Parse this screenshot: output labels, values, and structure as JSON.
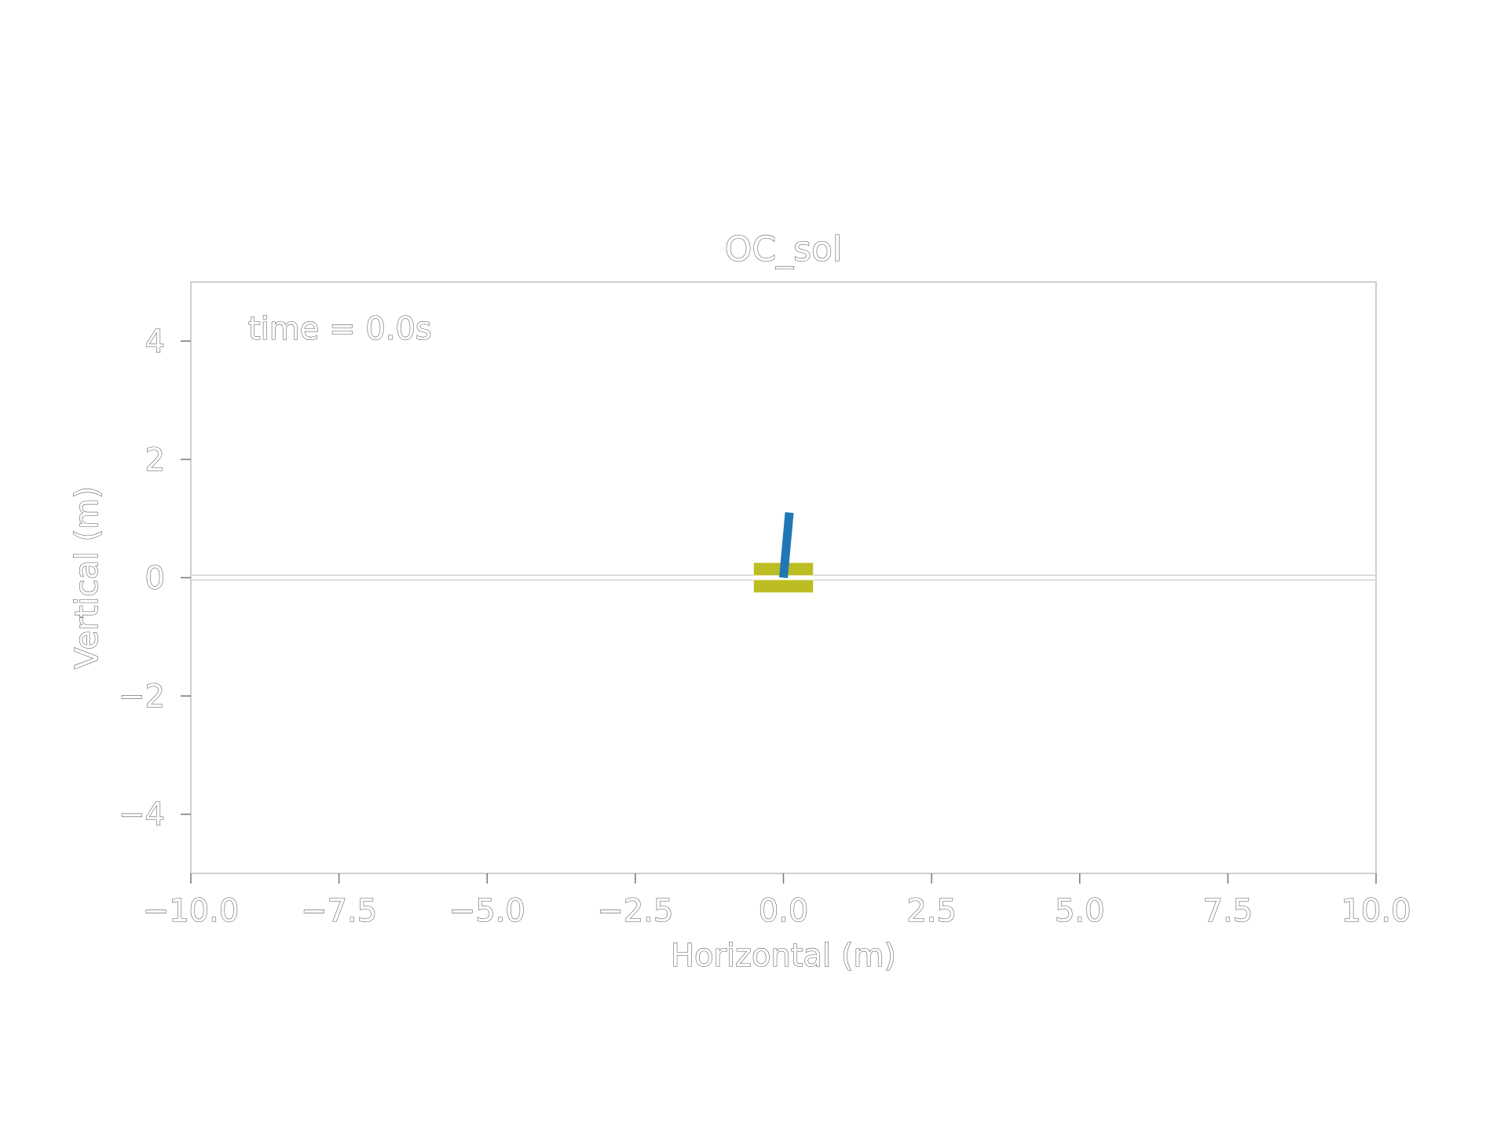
{
  "chart_data": {
    "type": "line",
    "title": "OC_sol",
    "xlabel": "Horizontal (m)",
    "ylabel": "Vertical (m)",
    "xlim": [
      -10.0,
      10.0
    ],
    "ylim": [
      -5.0,
      5.0
    ],
    "x_ticks": [
      -10.0,
      -7.5,
      -5.0,
      -2.5,
      0.0,
      2.5,
      5.0,
      7.5,
      10.0
    ],
    "x_tick_labels": [
      "−10.0",
      "−7.5",
      "−5.0",
      "−2.5",
      "0.0",
      "2.5",
      "5.0",
      "7.5",
      "10.0"
    ],
    "y_ticks": [
      -4,
      -2,
      0,
      2,
      4
    ],
    "y_tick_labels": [
      "−4",
      "−2",
      "0",
      "2",
      "4"
    ],
    "annotation": "time = 0.0s",
    "grid": false,
    "ground_line": {
      "y": 0.0,
      "color": "#d0d0d0"
    },
    "cart": {
      "x_center": 0.0,
      "y_center": 0.0,
      "width": 1.0,
      "height": 0.5,
      "color": "#bcbd22"
    },
    "pole": {
      "x": [
        0.0,
        0.1
      ],
      "y": [
        0.0,
        1.1
      ],
      "color": "#1f77b4"
    }
  }
}
